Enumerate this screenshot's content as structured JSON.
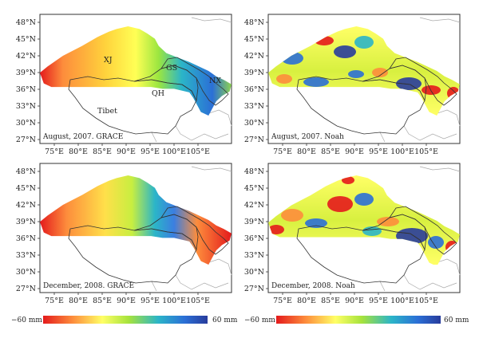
{
  "axes": {
    "x_ticks": [
      "75°E",
      "80°E",
      "85°E",
      "90°E",
      "95°E",
      "100°E",
      "105°E"
    ],
    "y_ticks": [
      "48°N",
      "45°N",
      "42°N",
      "39°N",
      "36°N",
      "33°N",
      "30°N",
      "27°N"
    ]
  },
  "panels": [
    {
      "id": "grace-2007-08",
      "caption": "August, 2007. GRACE",
      "dataset": "GRACE",
      "regions": [
        {
          "label": "XJ"
        },
        {
          "label": "GS"
        },
        {
          "label": "QH"
        },
        {
          "label": "NX"
        },
        {
          "label": "Tibet"
        }
      ]
    },
    {
      "id": "noah-2007-08",
      "caption": "August, 2007. Noah",
      "dataset": "Noah",
      "regions": []
    },
    {
      "id": "grace-2008-12",
      "caption": "December, 2008. GRACE",
      "dataset": "GRACE",
      "regions": []
    },
    {
      "id": "noah-2008-12",
      "caption": "December, 2008. Noah",
      "dataset": "Noah",
      "regions": []
    }
  ],
  "colorbars": [
    {
      "min_label": "−60 mm",
      "max_label": "60 mm"
    },
    {
      "min_label": "−60 mm",
      "max_label": "60 mm"
    }
  ],
  "colors": {
    "scale": [
      "#e41a1c",
      "#fd8d3c",
      "#fee090",
      "#ffff66",
      "#a6e33c",
      "#2bb5c8",
      "#2b6fd6",
      "#283c9c"
    ],
    "border": "#333333",
    "neighbor": "#aaaaaa"
  }
}
